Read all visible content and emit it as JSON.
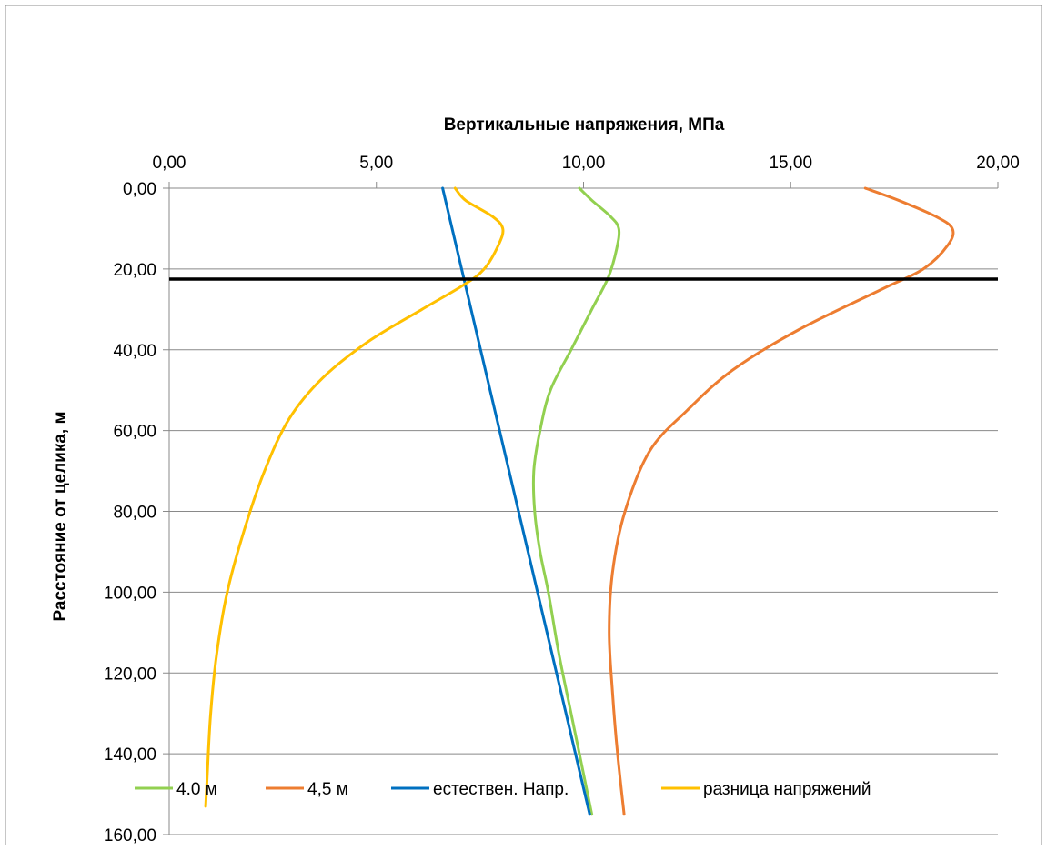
{
  "chart_data": {
    "type": "line",
    "title": "",
    "xlabel": "Вертикальные напряжения, МПа",
    "ylabel": "Расстояние от целика, м",
    "x_axis_position": "top",
    "y_axis_inverted": true,
    "xlim": [
      0,
      20
    ],
    "ylim": [
      0,
      160
    ],
    "x_ticks": [
      "0,00",
      "5,00",
      "10,00",
      "15,00",
      "20,00"
    ],
    "y_ticks": [
      "0,00",
      "20,00",
      "40,00",
      "60,00",
      "80,00",
      "100,00",
      "120,00",
      "140,00",
      "160,00"
    ],
    "grid": "horizontal",
    "legend_position": "bottom",
    "reference_line": {
      "y": 22.5,
      "color": "#000000"
    },
    "series": [
      {
        "name": "4.0 м",
        "color": "#92D050",
        "x": [
          9.9,
          10.2,
          10.65,
          10.85,
          10.8,
          10.6,
          10.2,
          9.7,
          9.2,
          8.95,
          8.8,
          8.82,
          8.95,
          9.15,
          9.4,
          9.7,
          10.0,
          10.2
        ],
        "y": [
          0,
          3,
          7,
          10,
          15,
          22,
          30,
          40,
          50,
          60,
          70,
          80,
          90,
          100,
          115,
          130,
          145,
          155
        ]
      },
      {
        "name": "4,5 м",
        "color": "#ED7D31",
        "x": [
          16.8,
          17.6,
          18.5,
          18.9,
          18.8,
          18.2,
          17.2,
          15.2,
          13.6,
          12.5,
          11.6,
          11.0,
          10.7,
          10.62,
          10.7,
          10.82,
          10.98
        ],
        "y": [
          0,
          3,
          7,
          10,
          14,
          20,
          25,
          35,
          45,
          55,
          65,
          80,
          95,
          110,
          125,
          140,
          155
        ]
      },
      {
        "name": "естествен. Напр.",
        "color": "#0070C0",
        "x": [
          6.6,
          10.15
        ],
        "y": [
          0,
          155
        ]
      },
      {
        "name": "разница напряжений",
        "color": "#FFC000",
        "x": [
          6.9,
          7.15,
          7.8,
          8.05,
          7.95,
          7.6,
          7.1,
          6.1,
          4.8,
          3.7,
          2.9,
          2.3,
          1.8,
          1.4,
          1.15,
          1.0,
          0.92,
          0.88
        ],
        "y": [
          0,
          3,
          7,
          10,
          14,
          20,
          24,
          30,
          38,
          47,
          57,
          70,
          85,
          100,
          115,
          130,
          145,
          153
        ]
      }
    ]
  }
}
